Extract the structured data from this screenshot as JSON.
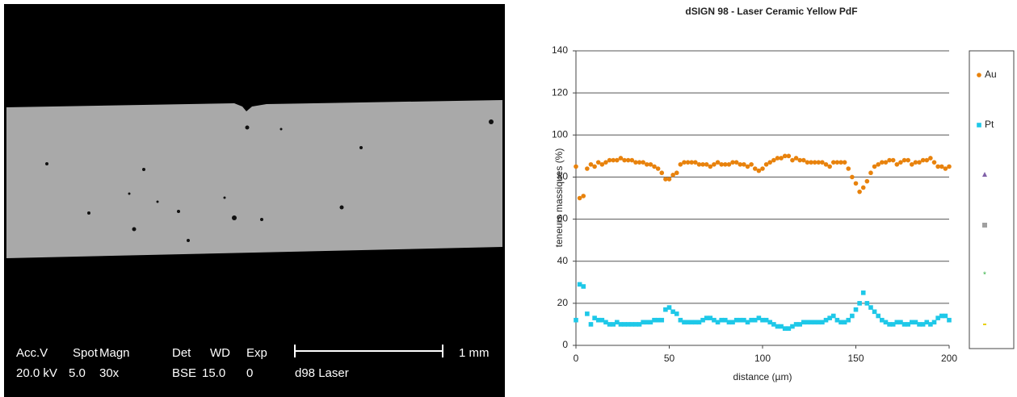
{
  "sem_image": {
    "labels": [
      "Acc.V",
      "Spot",
      "Magn",
      "Det",
      "WD",
      "Exp"
    ],
    "values": [
      "20.0 kV",
      "5.0",
      "30x",
      "BSE",
      "15.0",
      "0"
    ],
    "scale": "1 mm",
    "sample": "d98 Laser"
  },
  "chart_data": {
    "type": "scatter",
    "title": "dSIGN 98 - Laser Ceramic Yellow PdF",
    "y_label": "teneurs massiques (%)",
    "x_label": "distance (µm)",
    "x": [
      0,
      2,
      4,
      6,
      8,
      10,
      12,
      14,
      16,
      18,
      20,
      22,
      24,
      26,
      28,
      30,
      32,
      34,
      36,
      38,
      40,
      42,
      44,
      46,
      48,
      50,
      52,
      54,
      56,
      58,
      60,
      62,
      64,
      66,
      68,
      70,
      72,
      74,
      76,
      78,
      80,
      82,
      84,
      86,
      88,
      90,
      92,
      94,
      96,
      98,
      100,
      102,
      104,
      106,
      108,
      110,
      112,
      114,
      116,
      118,
      120,
      122,
      124,
      126,
      128,
      130,
      132,
      134,
      136,
      138,
      140,
      142,
      144,
      146,
      148,
      150,
      152,
      154,
      156,
      158,
      160,
      162,
      164,
      166,
      168,
      170,
      172,
      174,
      176,
      178,
      180,
      182,
      184,
      186,
      188,
      190,
      192,
      194,
      196,
      198,
      200
    ],
    "series": [
      {
        "name": "Au",
        "color": "#e8820c",
        "marker": "circle",
        "values": [
          85,
          70,
          71,
          84,
          86,
          85,
          87,
          86,
          87,
          88,
          88,
          88,
          89,
          88,
          88,
          88,
          87,
          87,
          87,
          86,
          86,
          85,
          84,
          82,
          79,
          79,
          81,
          82,
          86,
          87,
          87,
          87,
          87,
          86,
          86,
          86,
          85,
          86,
          87,
          86,
          86,
          86,
          87,
          87,
          86,
          86,
          85,
          86,
          84,
          83,
          84,
          86,
          87,
          88,
          89,
          89,
          90,
          90,
          88,
          89,
          88,
          88,
          87,
          87,
          87,
          87,
          87,
          86,
          85,
          87,
          87,
          87,
          87,
          84,
          80,
          77,
          73,
          75,
          78,
          82,
          85,
          86,
          87,
          87,
          88,
          88,
          86,
          87,
          88,
          88,
          86,
          87,
          87,
          88,
          88,
          89,
          87,
          85,
          85,
          84,
          85
        ]
      },
      {
        "name": "Pt",
        "color": "#1ec8e8",
        "marker": "square",
        "values": [
          12,
          29,
          28,
          15,
          10,
          13,
          12,
          12,
          11,
          10,
          10,
          11,
          10,
          10,
          10,
          10,
          10,
          10,
          11,
          11,
          11,
          12,
          12,
          12,
          17,
          18,
          16,
          15,
          12,
          11,
          11,
          11,
          11,
          11,
          12,
          13,
          13,
          12,
          11,
          12,
          12,
          11,
          11,
          12,
          12,
          12,
          11,
          12,
          12,
          13,
          12,
          12,
          11,
          10,
          9,
          9,
          8,
          8,
          9,
          10,
          10,
          11,
          11,
          11,
          11,
          11,
          11,
          12,
          13,
          14,
          12,
          11,
          11,
          12,
          14,
          17,
          20,
          25,
          20,
          18,
          16,
          14,
          12,
          11,
          10,
          10,
          11,
          11,
          10,
          10,
          11,
          11,
          10,
          10,
          11,
          10,
          11,
          13,
          14,
          14,
          12
        ]
      }
    ],
    "xlim": [
      0,
      200
    ],
    "xticks": [
      0,
      50,
      100,
      150,
      200
    ],
    "ylim": [
      0,
      140
    ],
    "yticks": [
      0,
      20,
      40,
      60,
      80,
      100,
      120,
      140
    ],
    "grid": true
  }
}
